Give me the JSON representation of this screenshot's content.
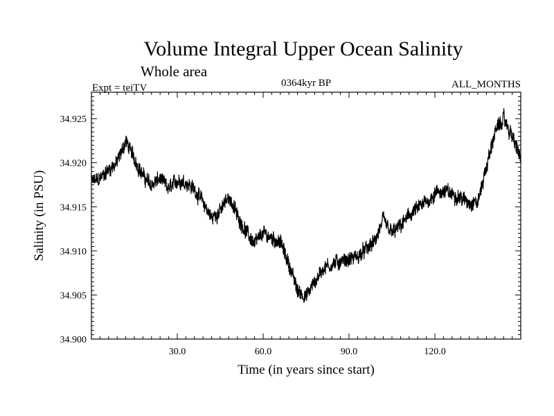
{
  "chart_data": {
    "type": "line",
    "title": "Volume Integral Upper Ocean Salinity",
    "subtitle": "Whole area",
    "header_left": "Expt = teiTV",
    "header_center": "0364kyr BP",
    "header_right": "ALL_MONTHS",
    "xlabel": "Time (in years since start)",
    "ylabel": "Salinity (in PSU)",
    "xlim": [
      0,
      150
    ],
    "ylim": [
      34.9,
      34.928
    ],
    "x_ticks": [
      30,
      60,
      90,
      120
    ],
    "x_tick_labels": [
      "30.0",
      "60.0",
      "90.0",
      "120.0"
    ],
    "y_ticks": [
      34.9,
      34.905,
      34.91,
      34.915,
      34.92,
      34.925
    ],
    "y_tick_labels": [
      "34.900",
      "34.905",
      "34.910",
      "34.915",
      "34.920",
      "34.925"
    ],
    "grid": false,
    "series": [
      {
        "name": "Salinity",
        "color": "#000000",
        "x": [
          0,
          3,
          6,
          9,
          12,
          15,
          18,
          21,
          24,
          27,
          30,
          33,
          36,
          39,
          42,
          45,
          48,
          51,
          54,
          57,
          60,
          63,
          66,
          69,
          72,
          75,
          78,
          81,
          84,
          87,
          90,
          93,
          96,
          99,
          102,
          105,
          108,
          111,
          114,
          117,
          120,
          123,
          126,
          129,
          132,
          135,
          138,
          141,
          144,
          147,
          150
        ],
        "values": [
          34.9178,
          34.9182,
          34.9192,
          34.92,
          34.9225,
          34.9205,
          34.9185,
          34.9175,
          34.9182,
          34.917,
          34.918,
          34.9178,
          34.917,
          34.9155,
          34.9137,
          34.9145,
          34.9162,
          34.914,
          34.9122,
          34.9108,
          34.912,
          34.9115,
          34.911,
          34.9085,
          34.9055,
          34.9048,
          34.9065,
          34.908,
          34.9085,
          34.9088,
          34.909,
          34.9093,
          34.9102,
          34.911,
          34.9135,
          34.912,
          34.9128,
          34.914,
          34.9148,
          34.9155,
          34.9165,
          34.9168,
          34.9165,
          34.916,
          34.9155,
          34.9155,
          34.9195,
          34.9235,
          34.925,
          34.923,
          34.9205
        ]
      }
    ]
  }
}
